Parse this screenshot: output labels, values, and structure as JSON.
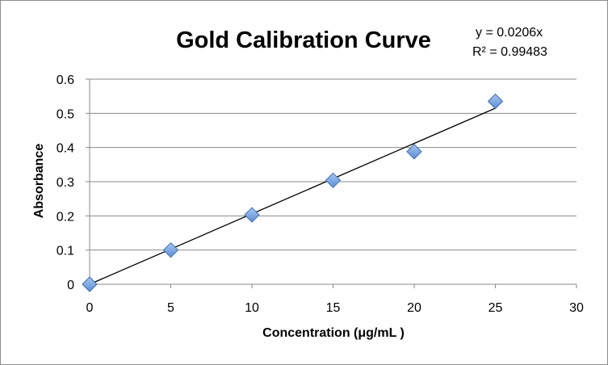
{
  "chart_data": {
    "type": "scatter",
    "title": "Gold Calibration Curve",
    "xlabel": "Concentration (μg/mL )",
    "ylabel": "Absorbance",
    "xlim": [
      0,
      30
    ],
    "ylim": [
      0,
      0.6
    ],
    "x_ticks": [
      "0",
      "5",
      "10",
      "15",
      "20",
      "25",
      "30"
    ],
    "y_ticks": [
      "0",
      "0.1",
      "0.2",
      "0.3",
      "0.4",
      "0.5",
      "0.6"
    ],
    "grid": "horizontal",
    "legend": "none",
    "series": [
      {
        "name": "Absorbance",
        "marker": "diamond",
        "color": "#5b8fd6",
        "x": [
          0,
          5,
          10,
          15,
          20,
          25
        ],
        "y": [
          0,
          0.1,
          0.203,
          0.304,
          0.388,
          0.535
        ]
      }
    ],
    "trendline": {
      "type": "linear",
      "slope": 0.0206,
      "intercept": 0,
      "x_range": [
        0,
        25
      ],
      "equation_label": "y = 0.0206x",
      "r2_label": "R² = 0.99483",
      "color": "#000000"
    }
  }
}
